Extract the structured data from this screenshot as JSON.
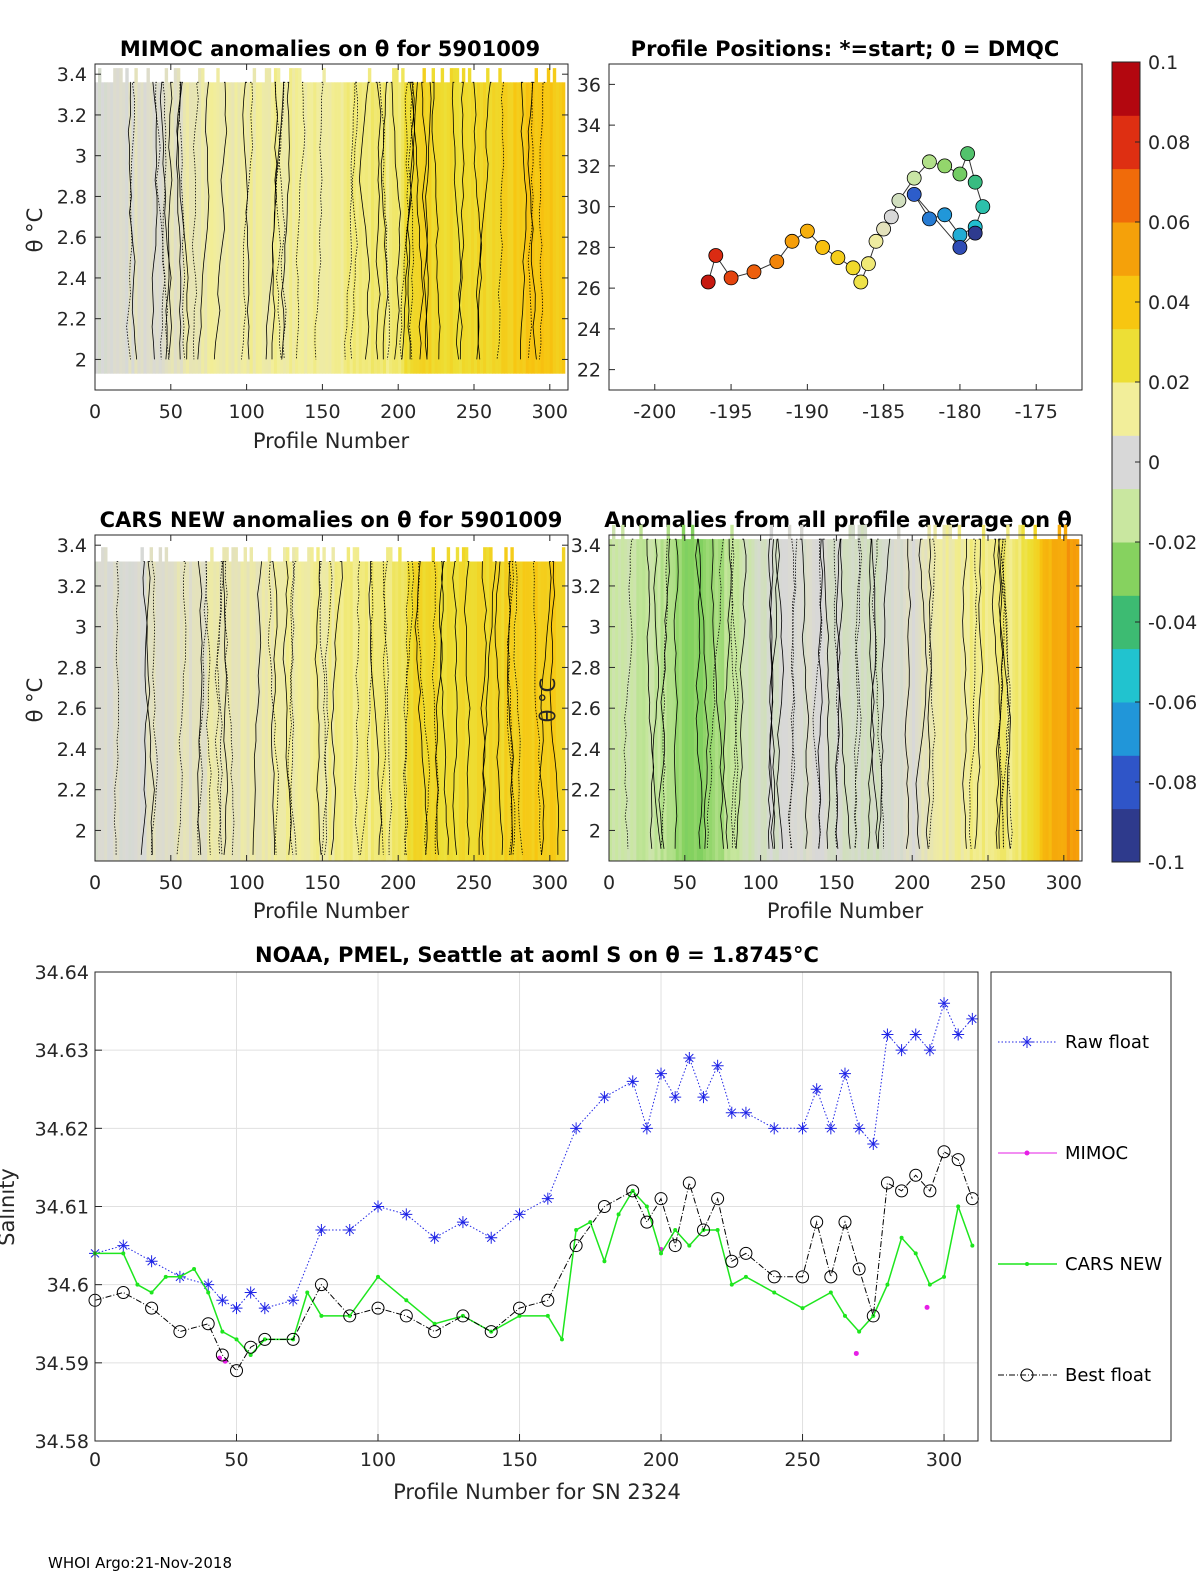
{
  "colorbar": {
    "ticks": [
      "0.1",
      "0.08",
      "0.06",
      "0.04",
      "0.02",
      "0",
      "-0.02",
      "-0.04",
      "-0.06",
      "-0.08",
      "-0.1"
    ],
    "colors": [
      "#2e3a8c",
      "#2f55c8",
      "#2196d9",
      "#21c3cf",
      "#3dbb72",
      "#86d25f",
      "#c9e7a0",
      "#d8d8d8",
      "#f2ee9a",
      "#eddf35",
      "#f7c611",
      "#f5a10a",
      "#f06b0a",
      "#de2f12",
      "#b3070f"
    ]
  },
  "panels": {
    "mimoc": {
      "title": "MIMOC anomalies on θ  for 5901009",
      "xlabel": "Profile Number",
      "ylabel": "θ °C",
      "xticks": [
        "0",
        "50",
        "100",
        "150",
        "200",
        "250",
        "300"
      ],
      "yticks": [
        "3.4",
        "3.2",
        "3",
        "2.8",
        "2.6",
        "2.4",
        "2.2",
        "2"
      ]
    },
    "map": {
      "title": "Profile Positions: *=start; 0 = DMQC",
      "xticks": [
        "-200",
        "-195",
        "-190",
        "-185",
        "-180",
        "-175"
      ],
      "yticks": [
        "36",
        "34",
        "32",
        "30",
        "28",
        "26",
        "24",
        "22"
      ]
    },
    "cars": {
      "title": "CARS NEW anomalies on θ for 5901009",
      "xlabel": "Profile Number",
      "ylabel": "θ °C",
      "xticks": [
        "0",
        "50",
        "100",
        "150",
        "200",
        "250",
        "300"
      ],
      "yticks": [
        "3.4",
        "3.2",
        "3",
        "2.8",
        "2.6",
        "2.4",
        "2.2",
        "2"
      ]
    },
    "avg": {
      "title": "Anomalies from all profile average on θ",
      "xlabel": "Profile Number",
      "ylabel": "θ °C",
      "xticks": [
        "0",
        "50",
        "100",
        "150",
        "200",
        "250",
        "300"
      ],
      "yticks": [
        "3.4",
        "3.2",
        "3",
        "2.8",
        "2.6",
        "2.4",
        "2.2",
        "2"
      ]
    }
  },
  "salinity": {
    "title": "NOAA, PMEL, Seattle at aoml S on θ = 1.8745°C",
    "xlabel": "Profile Number for SN 2324",
    "ylabel": "Salinity",
    "xticks": [
      "0",
      "50",
      "100",
      "150",
      "200",
      "250",
      "300"
    ],
    "yticks": [
      "34.64",
      "34.63",
      "34.62",
      "34.61",
      "34.6",
      "34.59",
      "34.58"
    ],
    "legend": [
      "Raw float",
      "MIMOC",
      "CARS NEW",
      "Best float"
    ]
  },
  "chart_data": [
    {
      "type": "heatmap",
      "title": "MIMOC anomalies on θ  for 5901009",
      "xlabel": "Profile Number",
      "ylabel": "θ °C",
      "xlim": [
        0,
        312
      ],
      "ylim": [
        1.85,
        3.45
      ],
      "anomaly_by_profile": [
        [
          0,
          0.0
        ],
        [
          40,
          0.004
        ],
        [
          80,
          0.012
        ],
        [
          120,
          0.014
        ],
        [
          160,
          0.016
        ],
        [
          200,
          0.02
        ],
        [
          210,
          0.036
        ],
        [
          240,
          0.03
        ],
        [
          270,
          0.036
        ],
        [
          290,
          0.044
        ],
        [
          310,
          0.04
        ]
      ],
      "clim": [
        -0.1,
        0.1
      ]
    },
    {
      "type": "scatter",
      "title": "Profile Positions: *=start; 0 = DMQC",
      "xlim": [
        -203,
        -172
      ],
      "ylim": [
        21,
        37
      ],
      "x": [
        -196.5,
        -196,
        -195,
        -193.5,
        -192,
        -191,
        -190,
        -189,
        -188,
        -187,
        -186.5,
        -186,
        -185.5,
        -185,
        -184.5,
        -184,
        -183,
        -182,
        -181,
        -180,
        -179.5,
        -179,
        -178.5,
        -179,
        -180,
        -181,
        -182,
        -183,
        -180,
        -179
      ],
      "y": [
        26.3,
        27.6,
        26.5,
        26.8,
        27.3,
        28.3,
        28.8,
        28.0,
        27.5,
        27.0,
        26.3,
        27.2,
        28.3,
        28.9,
        29.5,
        30.3,
        31.4,
        32.2,
        32.0,
        31.6,
        32.6,
        31.2,
        30.0,
        29.0,
        28.6,
        29.6,
        29.4,
        30.6,
        28.0,
        28.7
      ],
      "profile": [
        300,
        290,
        280,
        270,
        255,
        245,
        235,
        225,
        215,
        205,
        195,
        185,
        175,
        165,
        155,
        145,
        135,
        125,
        115,
        105,
        95,
        85,
        75,
        65,
        55,
        45,
        35,
        25,
        15,
        1
      ]
    },
    {
      "type": "heatmap",
      "title": "CARS NEW anomalies on θ for 5901009",
      "xlabel": "Profile Number",
      "ylabel": "θ °C",
      "xlim": [
        0,
        312
      ],
      "ylim": [
        1.85,
        3.45
      ],
      "anomaly_by_profile": [
        [
          0,
          0.0
        ],
        [
          40,
          0.003
        ],
        [
          80,
          0.008
        ],
        [
          120,
          0.012
        ],
        [
          160,
          0.015
        ],
        [
          200,
          0.02
        ],
        [
          210,
          0.034
        ],
        [
          240,
          0.03
        ],
        [
          270,
          0.035
        ],
        [
          290,
          0.04
        ],
        [
          310,
          0.038
        ]
      ],
      "clim": [
        -0.1,
        0.1
      ]
    },
    {
      "type": "heatmap",
      "title": "Anomalies from all profile average on θ",
      "xlabel": "Profile Number",
      "ylabel": "θ °C",
      "xlim": [
        0,
        312
      ],
      "ylim": [
        1.85,
        3.45
      ],
      "anomaly_by_profile": [
        [
          0,
          -0.012
        ],
        [
          30,
          -0.014
        ],
        [
          55,
          -0.03
        ],
        [
          75,
          -0.02
        ],
        [
          100,
          -0.004
        ],
        [
          140,
          0.0
        ],
        [
          170,
          -0.006
        ],
        [
          200,
          0.002
        ],
        [
          210,
          0.01
        ],
        [
          240,
          0.016
        ],
        [
          270,
          0.02
        ],
        [
          290,
          0.05
        ],
        [
          305,
          0.06
        ]
      ],
      "clim": [
        -0.1,
        0.1
      ]
    },
    {
      "type": "line",
      "title": "NOAA, PMEL, Seattle at aoml S on θ = 1.8745°C",
      "xlabel": "Profile Number for SN 2324",
      "ylabel": "Salinity",
      "xlim": [
        0,
        312
      ],
      "ylim": [
        34.58,
        34.64
      ],
      "series": [
        {
          "name": "Raw float",
          "color": "#1f24e6",
          "x": [
            0,
            10,
            20,
            30,
            40,
            45,
            50,
            55,
            60,
            70,
            80,
            90,
            100,
            110,
            120,
            130,
            140,
            150,
            160,
            170,
            180,
            190,
            195,
            200,
            205,
            210,
            215,
            220,
            225,
            230,
            240,
            250,
            255,
            260,
            265,
            270,
            275,
            280,
            285,
            290,
            295,
            300,
            305,
            310
          ],
          "y": [
            34.604,
            34.605,
            34.603,
            34.601,
            34.6,
            34.598,
            34.597,
            34.599,
            34.597,
            34.598,
            34.607,
            34.607,
            34.61,
            34.609,
            34.606,
            34.608,
            34.606,
            34.609,
            34.611,
            34.62,
            34.624,
            34.626,
            34.62,
            34.627,
            34.624,
            34.629,
            34.624,
            34.628,
            34.622,
            34.622,
            34.62,
            34.62,
            34.625,
            34.62,
            34.627,
            34.62,
            34.618,
            34.632,
            34.63,
            34.632,
            34.63,
            34.636,
            34.632,
            34.634
          ]
        },
        {
          "name": "MIMOC",
          "color": "#e61ee6",
          "x": [
            44,
            46,
            200,
            269,
            294
          ],
          "y": [
            34.5906,
            34.5902,
            34.6045,
            34.5912,
            34.5971
          ]
        },
        {
          "name": "CARS NEW",
          "color": "#1ee61e",
          "x": [
            0,
            10,
            15,
            20,
            25,
            30,
            35,
            40,
            45,
            50,
            55,
            60,
            70,
            75,
            80,
            90,
            100,
            110,
            120,
            130,
            140,
            150,
            160,
            165,
            170,
            175,
            180,
            185,
            190,
            195,
            200,
            205,
            210,
            215,
            220,
            225,
            230,
            240,
            250,
            260,
            265,
            270,
            275,
            280,
            285,
            290,
            295,
            300,
            305,
            310
          ],
          "y": [
            34.604,
            34.604,
            34.6,
            34.599,
            34.601,
            34.601,
            34.602,
            34.599,
            34.594,
            34.593,
            34.591,
            34.593,
            34.593,
            34.599,
            34.596,
            34.596,
            34.601,
            34.598,
            34.595,
            34.596,
            34.594,
            34.596,
            34.596,
            34.593,
            34.607,
            34.608,
            34.603,
            34.609,
            34.612,
            34.61,
            34.604,
            34.607,
            34.605,
            34.607,
            34.607,
            34.6,
            34.601,
            34.599,
            34.597,
            34.599,
            34.596,
            34.594,
            34.596,
            34.6,
            34.606,
            34.604,
            34.6,
            34.601,
            34.61,
            34.605
          ]
        },
        {
          "name": "Best float",
          "color": "#000000",
          "x": [
            0,
            10,
            20,
            30,
            40,
            45,
            50,
            55,
            60,
            70,
            80,
            90,
            100,
            110,
            120,
            130,
            140,
            150,
            160,
            170,
            180,
            190,
            195,
            200,
            205,
            210,
            215,
            220,
            225,
            230,
            240,
            250,
            255,
            260,
            265,
            270,
            275,
            280,
            285,
            290,
            295,
            300,
            305,
            310
          ],
          "y": [
            34.598,
            34.599,
            34.597,
            34.594,
            34.595,
            34.591,
            34.589,
            34.592,
            34.593,
            34.593,
            34.6,
            34.596,
            34.597,
            34.596,
            34.594,
            34.596,
            34.594,
            34.597,
            34.598,
            34.605,
            34.61,
            34.612,
            34.608,
            34.611,
            34.605,
            34.613,
            34.607,
            34.611,
            34.603,
            34.604,
            34.601,
            34.601,
            34.608,
            34.601,
            34.608,
            34.602,
            34.596,
            34.613,
            34.612,
            34.614,
            34.612,
            34.617,
            34.616,
            34.611
          ]
        }
      ]
    }
  ],
  "credit": "WHOI Argo:21-Nov-2018"
}
